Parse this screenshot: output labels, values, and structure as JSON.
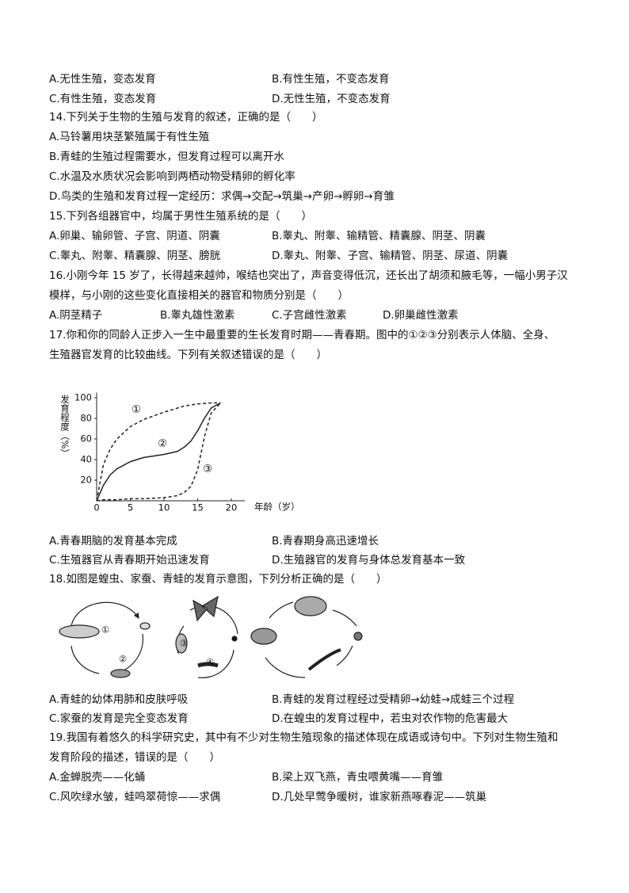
{
  "lines": [
    [
      "A.无性生殖，变态发育",
      "B.有性生殖，不变态发育"
    ],
    [
      "C.有性生殖，变态发育",
      "D.无性生殖，不变态发育"
    ],
    [
      "14.下列关于生物的生殖与发育的叙述，正确的是（　　）"
    ],
    [
      "A.马铃薯用块茎繁殖属于有性生殖"
    ],
    [
      "B.青蛙的生殖过程需要水，但发育过程可以离开水"
    ],
    [
      "C.水温及水质状况会影响到两栖动物受精卵的孵化率"
    ],
    [
      "D.鸟类的生殖和发育过程一定经历：求偶→交配→筑巢→产卵→孵卵→育雏"
    ],
    [
      "15.下列各组器官中，均属于男性生殖系统的是（　　）"
    ],
    [
      "A.卵巢、输卵管、子宫、阴道、阴囊",
      "B.睾丸、附睾、输精管、精囊腺、阴茎、阴囊"
    ],
    [
      "C.睾丸、附睾、精囊腺、阴茎、膀胱",
      "D.睾丸、附睾、子宫、输精管、阴茎、尿道、阴囊"
    ],
    [
      "16.小刚今年 15 岁了，长得越来越帅，喉结也突出了，声音变得低沉，还长出了胡须和腋毛等，一幅小男子汉"
    ],
    [
      "模样，与小刚的这些变化直接相关的器官和物质分别是（　　）"
    ],
    [
      "A.阴茎精子",
      "B.睾丸雄性激素",
      "C.子宫雌性激素",
      "D.卵巢雌性激素"
    ],
    [
      "17.你和你的同龄人正步入一生中最重要的生长发育时期——青春期。图中的①②③分别表示人体脑、全身、"
    ],
    [
      "生殖器官发育的比较曲线。下列有关叙述错误的是（　　）"
    ],
    [
      "A.青春期脑的发育基本完成",
      "B.青春期身高迅速增长"
    ],
    [
      "C.生殖器官从青春期开始迅速发育",
      "D.生殖器官的发育与身体总发育基本一致"
    ],
    [
      "18.如图是蝗虫、家蚕、青蛙的发育示意图，下列分析正确的是（　　）"
    ],
    [
      "A.青蛙的幼体用肺和皮肤呼吸",
      "B.青蛙的发育过程经过受精卵→幼蛙→成蛙三个过程"
    ],
    [
      "C.家蚕的发育是完全变态发育",
      "D.在蝗虫的发育过程中，若虫对农作物的危害最大"
    ],
    [
      "19.我国有着悠久的科学研究史，其中有不少对生物生殖现象的描述体现在成语或诗句中。下列对生物生殖和"
    ],
    [
      "发育阶段的描述，错误的是（　　）"
    ],
    [
      "A.金蝉脱壳——化蛹",
      "B.梁上双飞燕，青虫喂黄嘴——育雏"
    ],
    [
      "C.风吹绿水皱，蛙鸣翠荷惊——求偶",
      "D.几处早莺争暖树，谁家新燕啄春泥——筑巢"
    ]
  ],
  "chart_data": {
    "type": "line",
    "y_label": "发育程度（%）",
    "x_label": "年龄（岁）",
    "x": [
      0,
      1,
      2,
      3,
      5,
      7,
      10,
      12,
      13,
      14,
      15,
      16,
      17,
      18.4
    ],
    "series": [
      {
        "name": "①",
        "color": "#222",
        "style": "dashed",
        "values": [
          0,
          35,
          50,
          60,
          72,
          79,
          86,
          90,
          92,
          93,
          94,
          94.5,
          95,
          95
        ]
      },
      {
        "name": "②",
        "color": "#222",
        "style": "solid",
        "values": [
          0,
          15,
          25,
          31,
          38,
          42,
          45,
          48,
          52,
          58,
          68,
          80,
          90,
          95
        ]
      },
      {
        "name": "③",
        "color": "#222",
        "style": "dashed",
        "values": [
          0,
          1,
          1,
          1,
          2,
          2,
          3,
          5,
          8,
          14,
          30,
          62,
          85,
          95
        ]
      }
    ],
    "xlim": [
      0,
      22
    ],
    "ylim": [
      0,
      105
    ],
    "xticks": [
      0,
      5,
      10,
      15,
      20
    ],
    "yticks": [
      20,
      40,
      60,
      80,
      100
    ]
  },
  "figure": {
    "labels": [
      "①",
      "②",
      "③",
      "④"
    ]
  }
}
